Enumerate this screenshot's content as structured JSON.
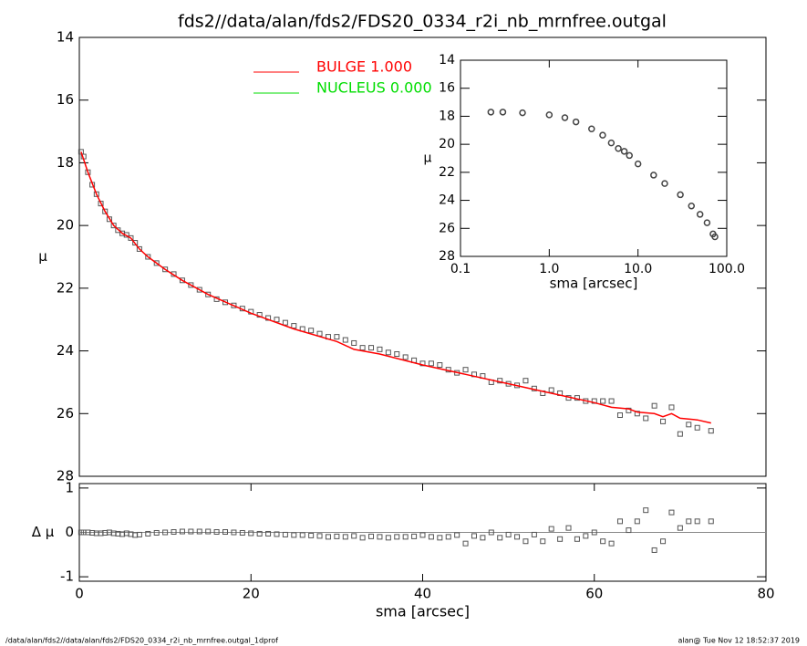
{
  "chart_data": [
    {
      "type": "scatter",
      "title": "fds2//data/alan/fds2/FDS20_0334_r2i_nb_mrnfree.outgal",
      "y_label": "μ",
      "xlim": [
        0,
        80
      ],
      "ylim": [
        28,
        14
      ],
      "yticks": [
        14,
        16,
        18,
        20,
        22,
        24,
        26,
        28
      ],
      "series": [
        {
          "marker": "square",
          "color": "#555555",
          "x": [
            0.2,
            0.5,
            1,
            1.5,
            2,
            2.5,
            3,
            3.5,
            4,
            4.5,
            5,
            5.5,
            6,
            6.5,
            7,
            8,
            9,
            10,
            11,
            12,
            13,
            14,
            15,
            16,
            17,
            18,
            19,
            20,
            21,
            22,
            23,
            24,
            25,
            26,
            27,
            28,
            29,
            30,
            31,
            32,
            33,
            34,
            35,
            36,
            37,
            38,
            39,
            40,
            41,
            42,
            43,
            44,
            45,
            46,
            47,
            48,
            49,
            50,
            51,
            52,
            53,
            54,
            55,
            56,
            57,
            58,
            59,
            60,
            61,
            62,
            63,
            64,
            65,
            66,
            67,
            68,
            69,
            70,
            71,
            72,
            73.6
          ],
          "values": [
            17.65,
            17.8,
            18.3,
            18.7,
            19.0,
            19.3,
            19.55,
            19.8,
            20.0,
            20.15,
            20.25,
            20.3,
            20.4,
            20.55,
            20.75,
            21.0,
            21.2,
            21.4,
            21.55,
            21.75,
            21.9,
            22.05,
            22.2,
            22.35,
            22.45,
            22.55,
            22.65,
            22.75,
            22.85,
            22.95,
            23.0,
            23.1,
            23.2,
            23.3,
            23.35,
            23.45,
            23.55,
            23.55,
            23.65,
            23.75,
            23.9,
            23.9,
            23.95,
            24.05,
            24.1,
            24.2,
            24.3,
            24.4,
            24.4,
            24.45,
            24.6,
            24.7,
            24.6,
            24.75,
            24.8,
            25.0,
            24.95,
            25.05,
            25.1,
            24.95,
            25.2,
            25.35,
            25.25,
            25.35,
            25.5,
            25.5,
            25.6,
            25.6,
            25.6,
            25.6,
            26.05,
            25.9,
            26.0,
            26.15,
            25.75,
            26.25,
            25.8,
            26.65,
            26.35,
            26.45,
            26.55
          ]
        },
        {
          "name": "BULGE  1.000",
          "marker": "line",
          "color": "#ff0000",
          "x": [
            0.2,
            1,
            2,
            3,
            4,
            5,
            6,
            7,
            8,
            10,
            12,
            15,
            20,
            25,
            30,
            32,
            35,
            40,
            45,
            50,
            55,
            60,
            62,
            64,
            65,
            67,
            68,
            69,
            70,
            72,
            73.6
          ],
          "values": [
            17.65,
            18.3,
            19.0,
            19.55,
            20.0,
            20.25,
            20.4,
            20.75,
            21.0,
            21.4,
            21.75,
            22.2,
            22.8,
            23.3,
            23.7,
            23.95,
            24.1,
            24.45,
            24.75,
            25.05,
            25.35,
            25.65,
            25.8,
            25.85,
            25.95,
            26.0,
            26.1,
            26.0,
            26.15,
            26.2,
            26.3
          ]
        }
      ],
      "legend_extra": [
        {
          "name": "NUCLEUS  0.000",
          "color": "#00dd00"
        }
      ]
    },
    {
      "type": "scatter",
      "y_label": "Δ μ",
      "x_label": "sma [arcsec]",
      "xlim": [
        0,
        80
      ],
      "xticks": [
        0,
        20,
        40,
        60,
        80
      ],
      "ylim": [
        -1.1,
        1.1
      ],
      "yticks": [
        -1,
        0,
        1
      ],
      "zero_line": true,
      "series": [
        {
          "marker": "square",
          "color": "#555555",
          "x": [
            0.2,
            0.5,
            1,
            1.5,
            2,
            2.5,
            3,
            3.5,
            4,
            4.5,
            5,
            5.5,
            6,
            6.5,
            7,
            8,
            9,
            10,
            11,
            12,
            13,
            14,
            15,
            16,
            17,
            18,
            19,
            20,
            21,
            22,
            23,
            24,
            25,
            26,
            27,
            28,
            29,
            30,
            31,
            32,
            33,
            34,
            35,
            36,
            37,
            38,
            39,
            40,
            41,
            42,
            43,
            44,
            45,
            46,
            47,
            48,
            49,
            50,
            51,
            52,
            53,
            54,
            55,
            56,
            57,
            58,
            59,
            60,
            61,
            62,
            63,
            64,
            65,
            66,
            67,
            68,
            69,
            70,
            71,
            72,
            73.6
          ],
          "values": [
            0,
            0,
            0,
            -0.01,
            -0.02,
            -0.02,
            -0.01,
            0,
            -0.02,
            -0.03,
            -0.04,
            -0.02,
            -0.04,
            -0.06,
            -0.05,
            -0.03,
            -0.01,
            0,
            0.01,
            0.02,
            0.02,
            0.02,
            0.02,
            0.01,
            0.01,
            0,
            -0.01,
            -0.02,
            -0.03,
            -0.03,
            -0.04,
            -0.05,
            -0.06,
            -0.06,
            -0.07,
            -0.08,
            -0.1,
            -0.09,
            -0.1,
            -0.08,
            -0.12,
            -0.09,
            -0.1,
            -0.12,
            -0.1,
            -0.1,
            -0.09,
            -0.06,
            -0.1,
            -0.12,
            -0.1,
            -0.06,
            -0.25,
            -0.08,
            -0.12,
            0.0,
            -0.12,
            -0.05,
            -0.1,
            -0.2,
            -0.05,
            -0.2,
            0.08,
            -0.15,
            0.1,
            -0.15,
            -0.08,
            0.0,
            -0.2,
            -0.25,
            0.25,
            0.05,
            0.25,
            0.5,
            -0.4,
            -0.2,
            0.45,
            0.1,
            0.25,
            0.25,
            0.25
          ]
        }
      ]
    },
    {
      "type": "scatter",
      "y_label": "μ",
      "x_label": "sma [arcsec]",
      "xscale": "log",
      "xlim": [
        0.1,
        100
      ],
      "xticks": [
        {
          "value": 0.1,
          "label": "0.1"
        },
        {
          "value": 1,
          "label": "1.0"
        },
        {
          "value": 10,
          "label": "10.0"
        },
        {
          "value": 100,
          "label": "100.0"
        }
      ],
      "ylim": [
        28,
        14
      ],
      "yticks": [
        14,
        16,
        18,
        20,
        22,
        24,
        26,
        28
      ],
      "series": [
        {
          "marker": "circle",
          "color": "#444444",
          "x": [
            0.22,
            0.3,
            0.5,
            1,
            1.5,
            2,
            3,
            4,
            5,
            6,
            7,
            8,
            10,
            15,
            20,
            30,
            40,
            50,
            60,
            70,
            73.6
          ],
          "values": [
            17.7,
            17.7,
            17.75,
            17.9,
            18.1,
            18.4,
            18.9,
            19.35,
            19.9,
            20.3,
            20.5,
            20.8,
            21.4,
            22.2,
            22.8,
            23.6,
            24.4,
            25.0,
            25.6,
            26.4,
            26.6
          ]
        }
      ]
    }
  ],
  "footer": {
    "left": "/data/alan/fds2//data/alan/fds2/FDS20_0334_r2i_nb_mrnfree.outgal_1dprof",
    "right": "alan@  Tue Nov 12 18:52:37 2019"
  }
}
